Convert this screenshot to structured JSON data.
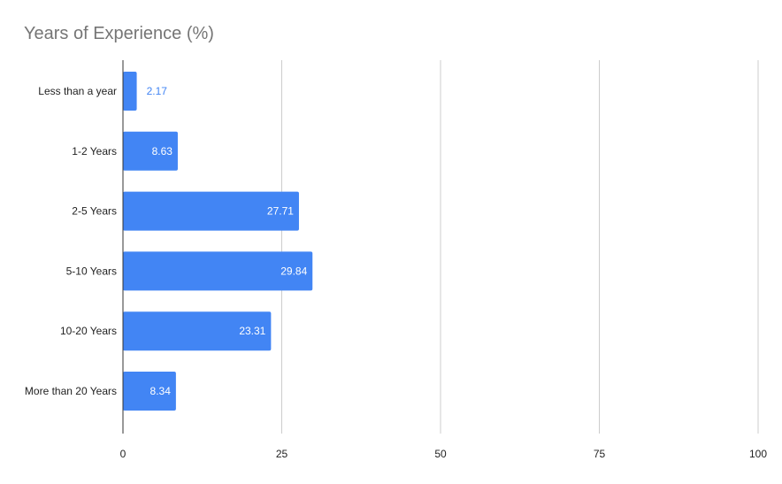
{
  "chart_data": {
    "type": "bar",
    "orientation": "horizontal",
    "title": "Years of Experience (%)",
    "categories": [
      "Less than a year",
      "1-2 Years",
      "2-5 Years",
      "5-10 Years",
      "10-20 Years",
      "More than 20 Years"
    ],
    "values": [
      2.17,
      8.63,
      27.71,
      29.84,
      23.31,
      8.34
    ],
    "data_labels": [
      "2.17",
      "8.63",
      "27.71",
      "29.84",
      "23.31",
      "8.34"
    ],
    "xlim": [
      0,
      100
    ],
    "x_ticks": [
      0,
      25,
      50,
      75,
      100
    ],
    "x_tick_labels": [
      "0",
      "25",
      "50",
      "75",
      "100"
    ],
    "xlabel": "",
    "ylabel": "",
    "grid": "vertical",
    "legend": "none",
    "colors": {
      "bar": "#4285f4",
      "gridline": "#cccccc",
      "axis": "#333333",
      "title": "#757575",
      "label_text": "#222222",
      "data_label_inside": "#ffffff",
      "data_label_outside": "#4285f4"
    }
  }
}
